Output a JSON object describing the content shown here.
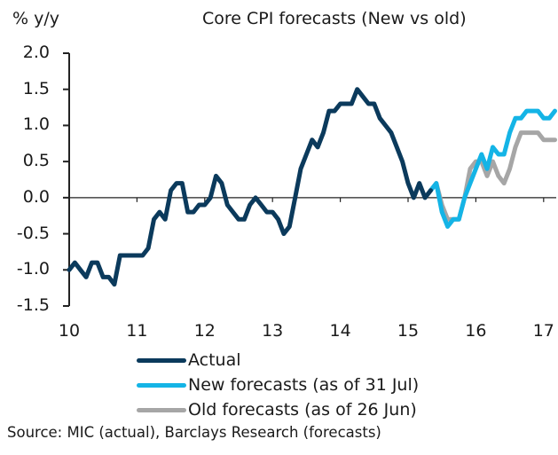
{
  "chart_data": {
    "type": "line",
    "title": "Core CPI forecasts (New vs old)",
    "ylabel": "% y/y",
    "xlabel": "",
    "ylim": [
      -1.5,
      2.0
    ],
    "xlim": [
      10,
      17.2
    ],
    "yticks": [
      "2.0",
      "1.5",
      "1.0",
      "0.5",
      "0.0",
      "-0.5",
      "-1.0",
      "-1.5"
    ],
    "ytick_values": [
      2.0,
      1.5,
      1.0,
      0.5,
      0.0,
      -0.5,
      -1.0,
      -1.5
    ],
    "xticks": [
      "10",
      "11",
      "12",
      "13",
      "14",
      "15",
      "16",
      "17"
    ],
    "xtick_values": [
      10,
      11,
      12,
      13,
      14,
      15,
      16,
      17
    ],
    "x_unit": "monthly, starting January 2010 (index 0)",
    "grid": false,
    "legend_position": "bottom",
    "series": [
      {
        "name": "Actual",
        "color": "#0b3a5c",
        "start_month": 0,
        "values": [
          -1.0,
          -0.9,
          -1.0,
          -1.1,
          -0.9,
          -0.9,
          -1.1,
          -1.1,
          -1.2,
          -0.8,
          -0.8,
          -0.8,
          -0.8,
          -0.8,
          -0.7,
          -0.3,
          -0.2,
          -0.3,
          0.1,
          0.2,
          0.2,
          -0.2,
          -0.2,
          -0.1,
          -0.1,
          0.0,
          0.3,
          0.2,
          -0.1,
          -0.2,
          -0.3,
          -0.3,
          -0.1,
          0.0,
          -0.1,
          -0.2,
          -0.2,
          -0.3,
          -0.5,
          -0.4,
          0.0,
          0.4,
          0.6,
          0.8,
          0.7,
          0.9,
          1.2,
          1.2,
          1.3,
          1.3,
          1.3,
          1.5,
          1.4,
          1.3,
          1.3,
          1.1,
          1.0,
          0.9,
          0.7,
          0.5,
          0.2,
          0.0,
          0.2,
          0.0,
          0.1
        ]
      },
      {
        "name": "New forecasts (as of 31 Jul)",
        "color": "#14b4e6",
        "start_month": 64,
        "values": [
          0.1,
          0.2,
          -0.2,
          -0.4,
          -0.3,
          -0.3,
          0.0,
          0.2,
          0.4,
          0.6,
          0.4,
          0.7,
          0.6,
          0.6,
          0.9,
          1.1,
          1.1,
          1.2,
          1.2,
          1.2,
          1.1,
          1.1,
          1.2
        ]
      },
      {
        "name": "Old forecasts (as of 26 Jun)",
        "color": "#a6a6a6",
        "start_month": 64,
        "values": [
          0.1,
          0.2,
          -0.1,
          -0.3,
          -0.3,
          -0.3,
          0.0,
          0.4,
          0.5,
          0.5,
          0.3,
          0.5,
          0.3,
          0.2,
          0.4,
          0.7,
          0.9,
          0.9,
          0.9,
          0.9,
          0.8,
          0.8,
          0.8
        ]
      }
    ],
    "source": "Source: MIC (actual), Barclays Research (forecasts)"
  }
}
